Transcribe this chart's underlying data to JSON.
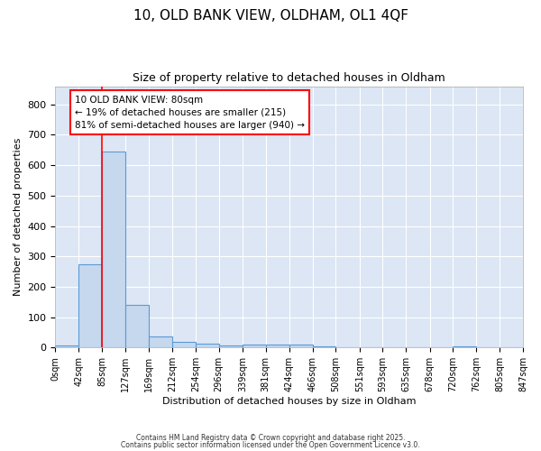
{
  "title1": "10, OLD BANK VIEW, OLDHAM, OL1 4QF",
  "title2": "Size of property relative to detached houses in Oldham",
  "xlabel": "Distribution of detached houses by size in Oldham",
  "ylabel": "Number of detached properties",
  "bar_color": "#c5d8ee",
  "bar_edge_color": "#5b9bd5",
  "plot_bg_color": "#dce6f5",
  "fig_bg_color": "#ffffff",
  "grid_color": "#ffffff",
  "property_line_x": 85,
  "annotation_text": "10 OLD BANK VIEW: 80sqm\n← 19% of detached houses are smaller (215)\n81% of semi-detached houses are larger (940) →",
  "bin_edges": [
    0,
    42,
    85,
    127,
    169,
    212,
    254,
    296,
    339,
    381,
    424,
    466,
    508,
    551,
    593,
    635,
    678,
    720,
    762,
    805,
    847
  ],
  "bin_counts": [
    8,
    275,
    645,
    140,
    38,
    18,
    12,
    7,
    10,
    10,
    10,
    5,
    2,
    0,
    0,
    0,
    0,
    5,
    0,
    0
  ],
  "ylim": [
    0,
    860
  ],
  "yticks": [
    0,
    100,
    200,
    300,
    400,
    500,
    600,
    700,
    800
  ],
  "footnote1": "Contains HM Land Registry data © Crown copyright and database right 2025.",
  "footnote2": "Contains public sector information licensed under the Open Government Licence v3.0."
}
